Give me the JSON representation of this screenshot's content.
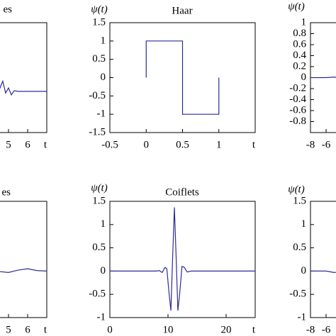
{
  "chart_data": [
    {
      "type": "line",
      "title": "es",
      "xlabel": "t",
      "x": [
        3,
        4,
        4.5,
        4.7,
        4.85,
        5,
        5.15,
        5.3,
        5.5,
        6,
        7
      ],
      "values": [
        0,
        0,
        0.02,
        0.3,
        -0.05,
        0.1,
        -0.1,
        0.02,
        0,
        0,
        0
      ],
      "color": "#2b2b9a",
      "xlim": [
        0,
        7
      ],
      "ylim": [
        -1.2,
        2
      ],
      "xticks": [
        5,
        6
      ]
    },
    {
      "type": "line",
      "title": "Haar",
      "ylabel": "ψ(t)",
      "xlabel": "t",
      "x": [
        0,
        0,
        0.5,
        0.5,
        1,
        1
      ],
      "values": [
        0,
        1,
        1,
        -1,
        -1,
        0
      ],
      "color": "#2b2b9a",
      "xlim": [
        -0.5,
        1.5
      ],
      "ylim": [
        -1.5,
        1.5
      ],
      "xticks": [
        -0.5,
        0,
        0.5,
        1
      ],
      "yticks": [
        -1.5,
        -1,
        -0.5,
        0,
        0.5,
        1,
        1.5
      ]
    },
    {
      "type": "line",
      "ylabel": "ψ(t)",
      "xlabel": "t",
      "x": [
        -8,
        -7,
        -6,
        -5,
        -4,
        -3,
        -2
      ],
      "values": [
        0,
        0,
        0,
        0.01,
        -0.01,
        0.01,
        0
      ],
      "color": "#2b2b9a",
      "xlim": [
        -8,
        8
      ],
      "ylim": [
        -1,
        1
      ],
      "xticks": [
        -8,
        -6
      ],
      "yticks": [
        -0.8,
        -0.6,
        -0.4,
        -0.2,
        0,
        0.2,
        0.4,
        0.6,
        0.8,
        1
      ]
    },
    {
      "type": "line",
      "title": "es",
      "xlabel": "t",
      "x": [
        2,
        3,
        4,
        4.5,
        5,
        5.5,
        6,
        6.5,
        7
      ],
      "values": [
        0,
        0,
        0,
        -0.01,
        -0.03,
        0.02,
        0.05,
        0.01,
        0
      ],
      "color": "#2b2b9a",
      "xlim": [
        0,
        7
      ],
      "ylim": [
        -1,
        1.5
      ],
      "xticks": [
        5,
        6
      ]
    },
    {
      "type": "line",
      "title": "Coiflets",
      "ylabel": "ψ(t)",
      "xlabel": "t",
      "x": [
        0,
        8,
        8.5,
        9,
        9.5,
        9.8,
        10.2,
        10.5,
        10.8,
        11.1,
        11.4,
        11.7,
        12,
        12.4,
        12.8,
        13.3,
        14,
        25
      ],
      "values": [
        0,
        0,
        0.01,
        -0.03,
        0.08,
        0.05,
        -0.5,
        -0.85,
        0.3,
        1.37,
        0.3,
        -0.85,
        -0.5,
        0.1,
        0.08,
        -0.02,
        0,
        0
      ],
      "color": "#2b2b9a",
      "xlim": [
        0,
        25
      ],
      "ylim": [
        -1,
        1.5
      ],
      "xticks": [
        0,
        10,
        20
      ],
      "yticks": [
        -1,
        -0.5,
        0,
        0.5,
        1,
        1.5
      ]
    },
    {
      "type": "line",
      "ylabel": "ψ(t)",
      "xlabel": "t",
      "x": [
        -8,
        -7,
        -6,
        -5,
        -4,
        -3,
        -2
      ],
      "values": [
        0,
        0,
        0,
        -0.03,
        -0.02,
        0,
        0
      ],
      "color": "#2b2b9a",
      "xlim": [
        -8,
        8
      ],
      "ylim": [
        -1,
        1.5
      ],
      "xticks": [
        -8,
        -6
      ],
      "yticks": [
        -1,
        -0.5,
        0,
        0.5,
        1,
        1.5
      ]
    }
  ]
}
